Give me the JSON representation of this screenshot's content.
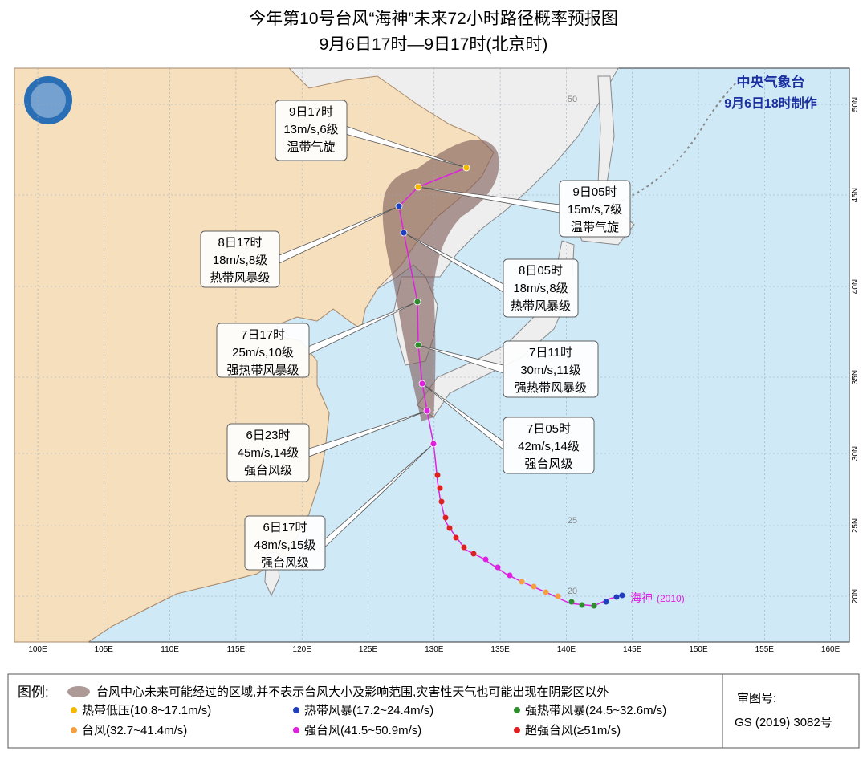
{
  "header": {
    "title": "今年第10号台风“海神”未来72小时路径概率预报图",
    "subtitle": "9月6日17时—9日17时(北京时)"
  },
  "agency": {
    "name": "中央气象台",
    "issued": "9月6日18时制作"
  },
  "forecast_points": [
    {
      "time": "6日17时",
      "wind": "48m/s,15级",
      "category": "强台风级"
    },
    {
      "time": "6日23时",
      "wind": "45m/s,14级",
      "category": "强台风级"
    },
    {
      "time": "7日05时",
      "wind": "42m/s,14级",
      "category": "强台风级"
    },
    {
      "time": "7日11时",
      "wind": "30m/s,11级",
      "category": "强热带风暴级"
    },
    {
      "time": "7日17时",
      "wind": "25m/s,10级",
      "category": "强热带风暴级"
    },
    {
      "time": "8日05时",
      "wind": "18m/s,8级",
      "category": "热带风暴级"
    },
    {
      "time": "8日17时",
      "wind": "18m/s,8级",
      "category": "热带风暴级"
    },
    {
      "time": "9日05时",
      "wind": "15m/s,7级",
      "category": "温带气旋"
    },
    {
      "time": "9日17时",
      "wind": "13m/s,6级",
      "category": "温带气旋"
    }
  ],
  "typhoon_label": {
    "name": "海神",
    "code": "(2010)"
  },
  "lon_labels": [
    "100E",
    "105E",
    "110E",
    "115E",
    "120E",
    "125E",
    "130E",
    "135E",
    "140E",
    "145E",
    "150E",
    "155E",
    "160E"
  ],
  "lat_labels": [
    "20N",
    "25N",
    "30N",
    "35N",
    "40N",
    "45N",
    "50N"
  ],
  "inner_labels": [
    "50",
    "25",
    "20"
  ],
  "legend": {
    "title": "图例:",
    "shade": "台风中心未来可能经过的区域,并不表示台风大小及影响范围,灾害性天气也可能出现在阴影区以外",
    "items": [
      {
        "label": "热带低压(10.8~17.1m/s)",
        "color": "#f5b800"
      },
      {
        "label": "热带风暴(17.2~24.4m/s)",
        "color": "#1f3fbf"
      },
      {
        "label": "强热带风暴(24.5~32.6m/s)",
        "color": "#2e8b2e"
      },
      {
        "label": "台风(32.7~41.4m/s)",
        "color": "#f5a040"
      },
      {
        "label": "强台风(41.5~50.9m/s)",
        "color": "#e020e0"
      },
      {
        "label": "超强台风(≥51m/s)",
        "color": "#e02020"
      }
    ]
  },
  "approval": {
    "label": "审图号:",
    "number": "GS (2019) 3082号"
  }
}
